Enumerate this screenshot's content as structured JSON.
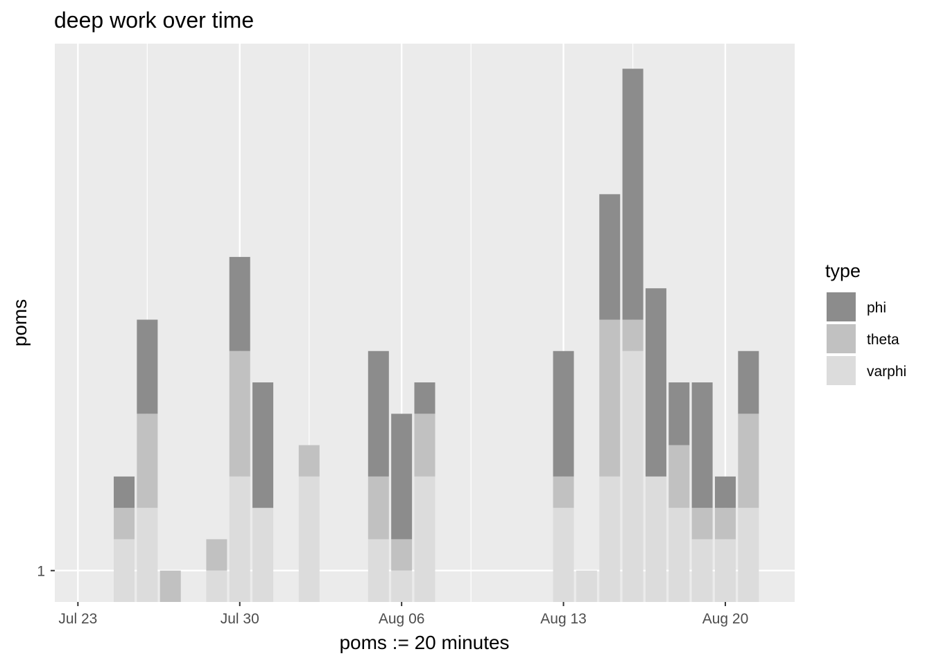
{
  "chart_data": {
    "type": "bar",
    "stacked": true,
    "title": "deep work over time",
    "xlabel": "poms := 20 minutes",
    "ylabel": "poms",
    "x_tick_labels": [
      "Jul 23",
      "Jul 30",
      "Aug 06",
      "Aug 13",
      "Aug 20"
    ],
    "y_tick_labels": [
      "1"
    ],
    "legend": {
      "title": "type",
      "position": "right"
    },
    "background": "#ebebeb",
    "grid": true,
    "series": [
      {
        "name": "phi",
        "color": "#8c8c8c"
      },
      {
        "name": "theta",
        "color": "#c1c1c1"
      },
      {
        "name": "varphi",
        "color": "#dcdcdc"
      }
    ],
    "x_range": [
      "2018-07-22",
      "2018-08-23"
    ],
    "y_range": [
      0,
      17.8
    ],
    "bars": [
      {
        "date": "2018-07-25",
        "phi": 1,
        "theta": 1,
        "varphi": 2
      },
      {
        "date": "2018-07-26",
        "phi": 3,
        "theta": 3,
        "varphi": 3
      },
      {
        "date": "2018-07-27",
        "phi": 0,
        "theta": 1,
        "varphi": 0
      },
      {
        "date": "2018-07-29",
        "phi": 0,
        "theta": 1,
        "varphi": 1
      },
      {
        "date": "2018-07-30",
        "phi": 3,
        "theta": 4,
        "varphi": 4
      },
      {
        "date": "2018-07-31",
        "phi": 4,
        "theta": 0,
        "varphi": 3
      },
      {
        "date": "2018-08-02",
        "phi": 0,
        "theta": 1,
        "varphi": 4
      },
      {
        "date": "2018-08-05",
        "phi": 4,
        "theta": 2,
        "varphi": 2
      },
      {
        "date": "2018-08-06",
        "phi": 4,
        "theta": 1,
        "varphi": 1
      },
      {
        "date": "2018-08-07",
        "phi": 1,
        "theta": 2,
        "varphi": 4
      },
      {
        "date": "2018-08-13",
        "phi": 4,
        "theta": 1,
        "varphi": 3
      },
      {
        "date": "2018-08-14",
        "phi": 0,
        "theta": 0,
        "varphi": 1
      },
      {
        "date": "2018-08-15",
        "phi": 4,
        "theta": 5,
        "varphi": 4
      },
      {
        "date": "2018-08-16",
        "phi": 8,
        "theta": 1,
        "varphi": 8
      },
      {
        "date": "2018-08-17",
        "phi": 6,
        "theta": 0,
        "varphi": 4
      },
      {
        "date": "2018-08-18",
        "phi": 2,
        "theta": 2,
        "varphi": 3
      },
      {
        "date": "2018-08-19",
        "phi": 4,
        "theta": 1,
        "varphi": 2
      },
      {
        "date": "2018-08-20",
        "phi": 1,
        "theta": 1,
        "varphi": 2
      },
      {
        "date": "2018-08-21",
        "phi": 2,
        "theta": 3,
        "varphi": 3
      }
    ]
  }
}
